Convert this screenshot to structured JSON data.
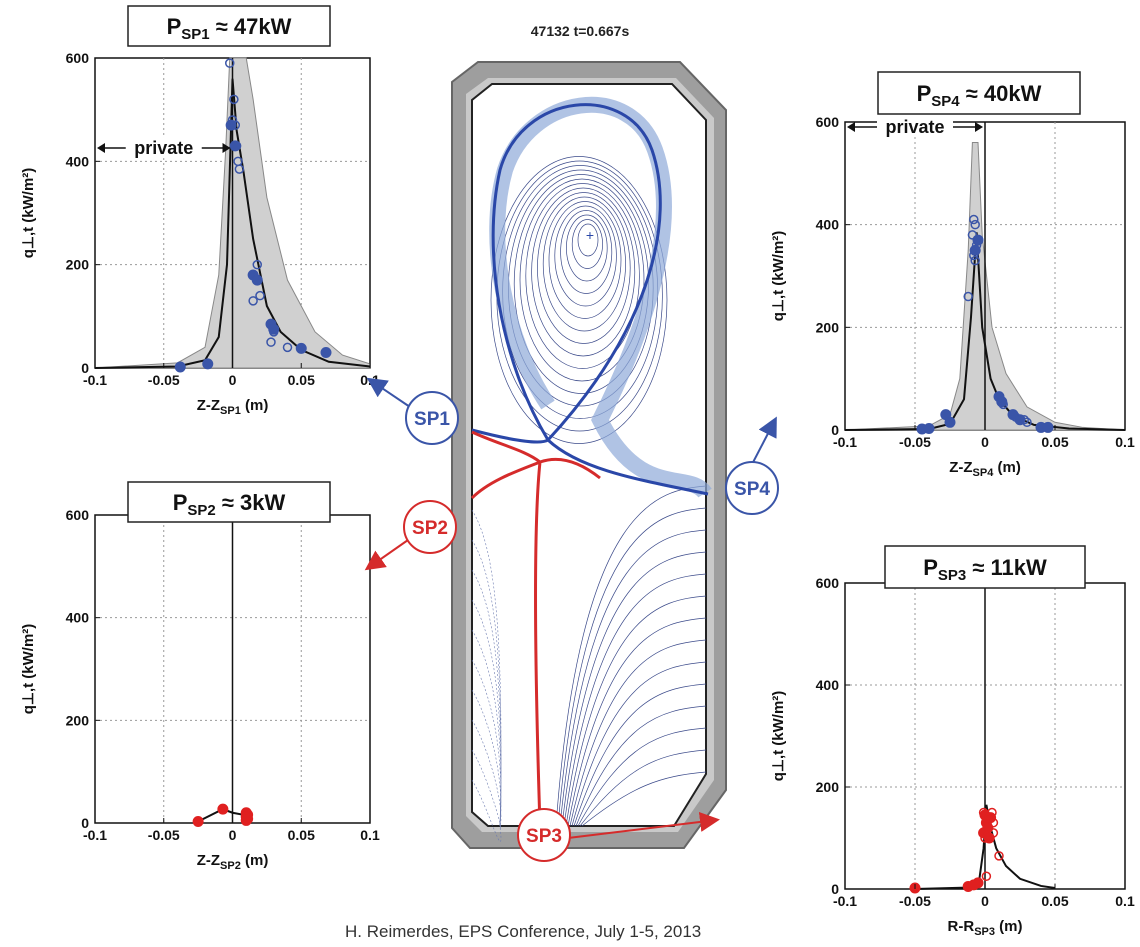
{
  "center": {
    "shot_label": "47132 t=0.667s"
  },
  "markers": [
    {
      "key": "sp1",
      "text": "SP1",
      "color": "#3a55a8"
    },
    {
      "key": "sp2",
      "text": "SP2",
      "color": "#d52b2b"
    },
    {
      "key": "sp3",
      "text": "SP3",
      "color": "#d52b2b"
    },
    {
      "key": "sp4",
      "text": "SP4",
      "color": "#3a55a8"
    }
  ],
  "footer": "H. Reimerdes, EPS Conference, July 1-5, 2013",
  "colors": {
    "blue": "#3a55a8",
    "red": "#e02020",
    "band": "#d0d0d0",
    "vessel": "#9e9e9e"
  },
  "chart_data": [
    {
      "key": "sp1",
      "type": "scatter",
      "title_P": "P",
      "title_sub": "SP1",
      "title_rest": "≈ 47kW",
      "ylabel": "q⊥,t (kW/m²)",
      "xlabel_main": "Z-Z",
      "xlabel_sub": "SP1",
      "xlabel_unit": "(m)",
      "xlim": [
        -0.1,
        0.1
      ],
      "ylim": [
        0,
        600
      ],
      "xticks": [
        -0.1,
        -0.05,
        0,
        0.05,
        0.1
      ],
      "xtick_labels": [
        "-0.1",
        "-0.05",
        "0",
        "0.05",
        "0.1"
      ],
      "yticks": [
        0,
        200,
        400,
        600
      ],
      "ytick_labels": [
        "0",
        "200",
        "400",
        "600"
      ],
      "annotation": "private",
      "color": "#3a55a8",
      "grid": true,
      "filled_points": [
        [
          -0.038,
          2
        ],
        [
          -0.018,
          8
        ],
        [
          0.015,
          180
        ],
        [
          0.018,
          170
        ],
        [
          0.028,
          85
        ],
        [
          0.03,
          75
        ],
        [
          0.05,
          38
        ],
        [
          0.068,
          30
        ],
        [
          -0.001,
          470
        ],
        [
          0.002,
          430
        ]
      ],
      "open_points": [
        [
          -0.002,
          590
        ],
        [
          0.001,
          520
        ],
        [
          0.0,
          480
        ],
        [
          0.002,
          470
        ],
        [
          0.003,
          430
        ],
        [
          0.004,
          400
        ],
        [
          0.005,
          385
        ],
        [
          0.018,
          200
        ],
        [
          0.02,
          140
        ],
        [
          0.015,
          130
        ],
        [
          0.028,
          50
        ],
        [
          0.04,
          40
        ],
        [
          0.03,
          70
        ]
      ],
      "fit_curve": [
        [
          -0.1,
          0
        ],
        [
          -0.04,
          3
        ],
        [
          -0.02,
          15
        ],
        [
          -0.01,
          60
        ],
        [
          -0.004,
          200
        ],
        [
          0.0,
          560
        ],
        [
          0.003,
          460
        ],
        [
          0.008,
          380
        ],
        [
          0.015,
          250
        ],
        [
          0.025,
          120
        ],
        [
          0.035,
          70
        ],
        [
          0.05,
          35
        ],
        [
          0.07,
          12
        ],
        [
          0.1,
          3
        ]
      ],
      "band_upper": [
        [
          -0.1,
          0
        ],
        [
          -0.04,
          10
        ],
        [
          -0.02,
          40
        ],
        [
          -0.01,
          180
        ],
        [
          -0.005,
          420
        ],
        [
          -0.002,
          600
        ],
        [
          0.01,
          600
        ],
        [
          0.015,
          520
        ],
        [
          0.025,
          330
        ],
        [
          0.04,
          170
        ],
        [
          0.06,
          70
        ],
        [
          0.08,
          25
        ],
        [
          0.1,
          8
        ]
      ],
      "band_lower": [
        [
          -0.1,
          0
        ],
        [
          0.1,
          0
        ]
      ]
    },
    {
      "key": "sp2",
      "type": "scatter",
      "title_P": "P",
      "title_sub": "SP2",
      "title_rest": "≈ 3kW",
      "ylabel": "q⊥,t (kW/m²)",
      "xlabel_main": "Z-Z",
      "xlabel_sub": "SP2",
      "xlabel_unit": "(m)",
      "xlim": [
        -0.1,
        0.1
      ],
      "ylim": [
        0,
        600
      ],
      "xticks": [
        -0.1,
        -0.05,
        0,
        0.05,
        0.1
      ],
      "xtick_labels": [
        "-0.1",
        "-0.05",
        "0",
        "0.05",
        "0.1"
      ],
      "yticks": [
        0,
        200,
        400,
        600
      ],
      "ytick_labels": [
        "0",
        "200",
        "400",
        "600"
      ],
      "annotation": "",
      "color": "#e02020",
      "grid": true,
      "filled_points": [
        [
          -0.025,
          3
        ],
        [
          -0.007,
          27
        ],
        [
          0.01,
          20
        ],
        [
          0.011,
          16
        ],
        [
          0.01,
          12
        ],
        [
          0.011,
          8
        ],
        [
          0.01,
          5
        ]
      ],
      "open_points": [],
      "fit_curve": [
        [
          -0.025,
          3
        ],
        [
          -0.007,
          27
        ],
        [
          0.0,
          20
        ],
        [
          0.01,
          15
        ]
      ],
      "band_upper": [],
      "band_lower": []
    },
    {
      "key": "sp4",
      "type": "scatter",
      "title_P": "P",
      "title_sub": "SP4",
      "title_rest": "≈ 40kW",
      "ylabel": "q⊥,t (kW/m²)",
      "xlabel_main": "Z-Z",
      "xlabel_sub": "SP4",
      "xlabel_unit": "(m)",
      "xlim": [
        -0.1,
        0.1
      ],
      "ylim": [
        0,
        600
      ],
      "xticks": [
        -0.1,
        -0.05,
        0,
        0.05,
        0.1
      ],
      "xtick_labels": [
        "-0.1",
        "-0.05",
        "0",
        "0.05",
        "0.1"
      ],
      "yticks": [
        0,
        200,
        400,
        600
      ],
      "ytick_labels": [
        "0",
        "200",
        "400",
        "600"
      ],
      "annotation": "private",
      "color": "#3a55a8",
      "grid": true,
      "filled_points": [
        [
          -0.045,
          2
        ],
        [
          -0.04,
          3
        ],
        [
          -0.028,
          30
        ],
        [
          -0.025,
          15
        ],
        [
          0.01,
          65
        ],
        [
          0.012,
          55
        ],
        [
          0.02,
          30
        ],
        [
          0.025,
          20
        ],
        [
          0.04,
          5
        ],
        [
          0.045,
          5
        ],
        [
          -0.007,
          350
        ],
        [
          -0.005,
          370
        ]
      ],
      "open_points": [
        [
          -0.008,
          410
        ],
        [
          -0.007,
          400
        ],
        [
          -0.009,
          380
        ],
        [
          -0.006,
          360
        ],
        [
          -0.008,
          340
        ],
        [
          -0.007,
          330
        ],
        [
          -0.012,
          260
        ],
        [
          0.013,
          50
        ],
        [
          0.022,
          25
        ],
        [
          0.028,
          20
        ],
        [
          0.03,
          15
        ]
      ],
      "fit_curve": [
        [
          -0.1,
          0
        ],
        [
          -0.04,
          2
        ],
        [
          -0.025,
          12
        ],
        [
          -0.015,
          60
        ],
        [
          -0.01,
          220
        ],
        [
          -0.006,
          385
        ],
        [
          -0.002,
          200
        ],
        [
          0.004,
          100
        ],
        [
          0.01,
          60
        ],
        [
          0.02,
          28
        ],
        [
          0.035,
          10
        ],
        [
          0.06,
          3
        ],
        [
          0.1,
          0
        ]
      ],
      "band_upper": [
        [
          -0.1,
          0
        ],
        [
          -0.04,
          8
        ],
        [
          -0.025,
          30
        ],
        [
          -0.018,
          100
        ],
        [
          -0.012,
          350
        ],
        [
          -0.009,
          560
        ],
        [
          -0.005,
          560
        ],
        [
          -0.002,
          380
        ],
        [
          0.005,
          200
        ],
        [
          0.015,
          110
        ],
        [
          0.03,
          45
        ],
        [
          0.05,
          15
        ],
        [
          0.07,
          5
        ],
        [
          0.1,
          0
        ]
      ],
      "band_lower": [
        [
          -0.1,
          0
        ],
        [
          0.1,
          0
        ]
      ]
    },
    {
      "key": "sp3",
      "type": "scatter",
      "title_P": "P",
      "title_sub": "SP3",
      "title_rest": "≈ 11kW",
      "ylabel": "q⊥,t (kW/m²)",
      "xlabel_main": "R-R",
      "xlabel_sub": "SP3",
      "xlabel_unit": "(m)",
      "xlim": [
        -0.1,
        0.1
      ],
      "ylim": [
        0,
        600
      ],
      "xticks": [
        -0.1,
        -0.05,
        0,
        0.05,
        0.1
      ],
      "xtick_labels": [
        "-0.1",
        "-0.05",
        "0",
        "0.05",
        "0.1"
      ],
      "yticks": [
        0,
        200,
        400,
        600
      ],
      "ytick_labels": [
        "0",
        "200",
        "400",
        "600"
      ],
      "annotation": "",
      "color": "#e02020",
      "grid": true,
      "filled_points": [
        [
          -0.05,
          2
        ],
        [
          -0.012,
          5
        ],
        [
          -0.008,
          8
        ],
        [
          -0.005,
          12
        ],
        [
          0.0,
          145
        ],
        [
          0.001,
          130
        ],
        [
          -0.001,
          110
        ],
        [
          0.003,
          100
        ],
        [
          0.002,
          120
        ],
        [
          0.004,
          140
        ]
      ],
      "open_points": [
        [
          -0.001,
          150
        ],
        [
          0.003,
          140
        ],
        [
          0.005,
          150
        ],
        [
          0.0,
          100
        ],
        [
          0.006,
          110
        ],
        [
          0.006,
          130
        ],
        [
          0.001,
          25
        ],
        [
          0.01,
          65
        ]
      ],
      "fit_curve": [
        [
          -0.05,
          0
        ],
        [
          -0.01,
          3
        ],
        [
          -0.004,
          20
        ],
        [
          -0.001,
          80
        ],
        [
          0.001,
          165
        ],
        [
          0.004,
          120
        ],
        [
          0.008,
          80
        ],
        [
          0.015,
          45
        ],
        [
          0.025,
          20
        ],
        [
          0.04,
          6
        ],
        [
          0.05,
          2
        ]
      ],
      "band_upper": [],
      "band_lower": []
    }
  ]
}
